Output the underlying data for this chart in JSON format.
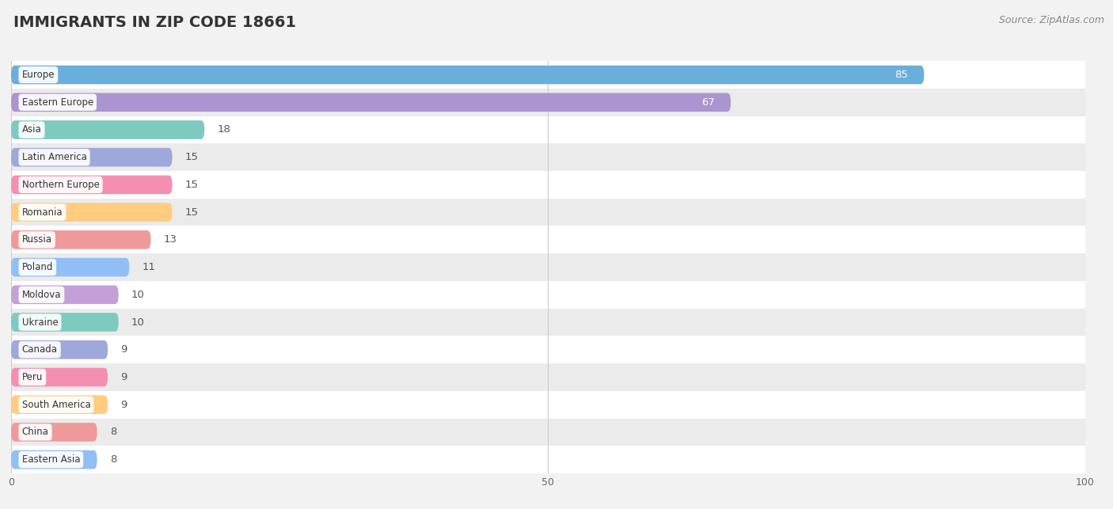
{
  "title": "IMMIGRANTS IN ZIP CODE 18661",
  "source": "Source: ZipAtlas.com",
  "categories": [
    "Europe",
    "Eastern Europe",
    "Asia",
    "Latin America",
    "Northern Europe",
    "Romania",
    "Russia",
    "Poland",
    "Moldova",
    "Ukraine",
    "Canada",
    "Peru",
    "South America",
    "China",
    "Eastern Asia"
  ],
  "values": [
    85,
    67,
    18,
    15,
    15,
    15,
    13,
    11,
    10,
    10,
    9,
    9,
    9,
    8,
    8
  ],
  "bar_colors": [
    "#6aaedb",
    "#ab94d0",
    "#7dcac0",
    "#9fa8da",
    "#f48fb1",
    "#ffcc80",
    "#ef9a9a",
    "#90bef5",
    "#c49fd8",
    "#7dcac0",
    "#9fa8da",
    "#f48fb1",
    "#ffcc80",
    "#ef9a9a",
    "#90bef5"
  ],
  "xlim": [
    0,
    100
  ],
  "background_color": "#f2f2f2",
  "row_colors_even": "#ffffff",
  "row_colors_odd": "#ebebeb",
  "title_fontsize": 14,
  "source_fontsize": 9,
  "bar_height": 0.68,
  "figsize": [
    14.06,
    6.43
  ]
}
